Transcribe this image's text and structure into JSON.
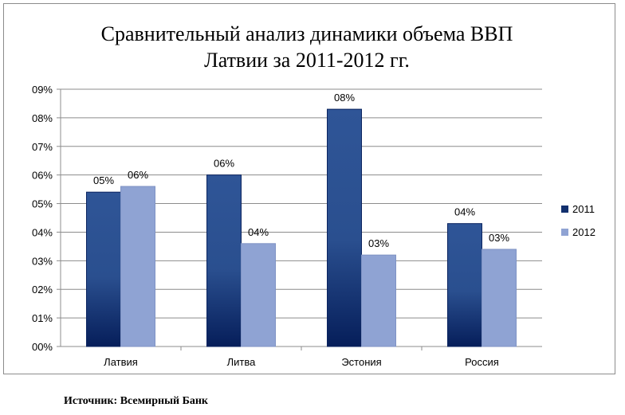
{
  "chart_data": {
    "type": "bar",
    "title_lines": [
      "Сравнительный анализ динамики объема ВВП",
      "Латвии за 2011-2012  гг."
    ],
    "categories": [
      "Латвия",
      "Литва",
      "Эстония",
      "Россия"
    ],
    "series": [
      {
        "name": "2011",
        "values": [
          5.4,
          6.0,
          8.3,
          4.3
        ],
        "labels": [
          "05%",
          "06%",
          "08%",
          "04%"
        ],
        "color": "#2f5597",
        "color_dark": "#0b2460"
      },
      {
        "name": "2012",
        "values": [
          5.6,
          3.6,
          3.2,
          3.4
        ],
        "labels": [
          "06%",
          "04%",
          "03%",
          "03%"
        ],
        "color": "#8fa3d3"
      }
    ],
    "ylim": [
      0,
      9
    ],
    "yticks": [
      "00%",
      "01%",
      "02%",
      "03%",
      "04%",
      "05%",
      "06%",
      "07%",
      "08%",
      "09%"
    ],
    "grid": true,
    "legend": "right"
  },
  "source": "Источник: Всемирный Банк"
}
